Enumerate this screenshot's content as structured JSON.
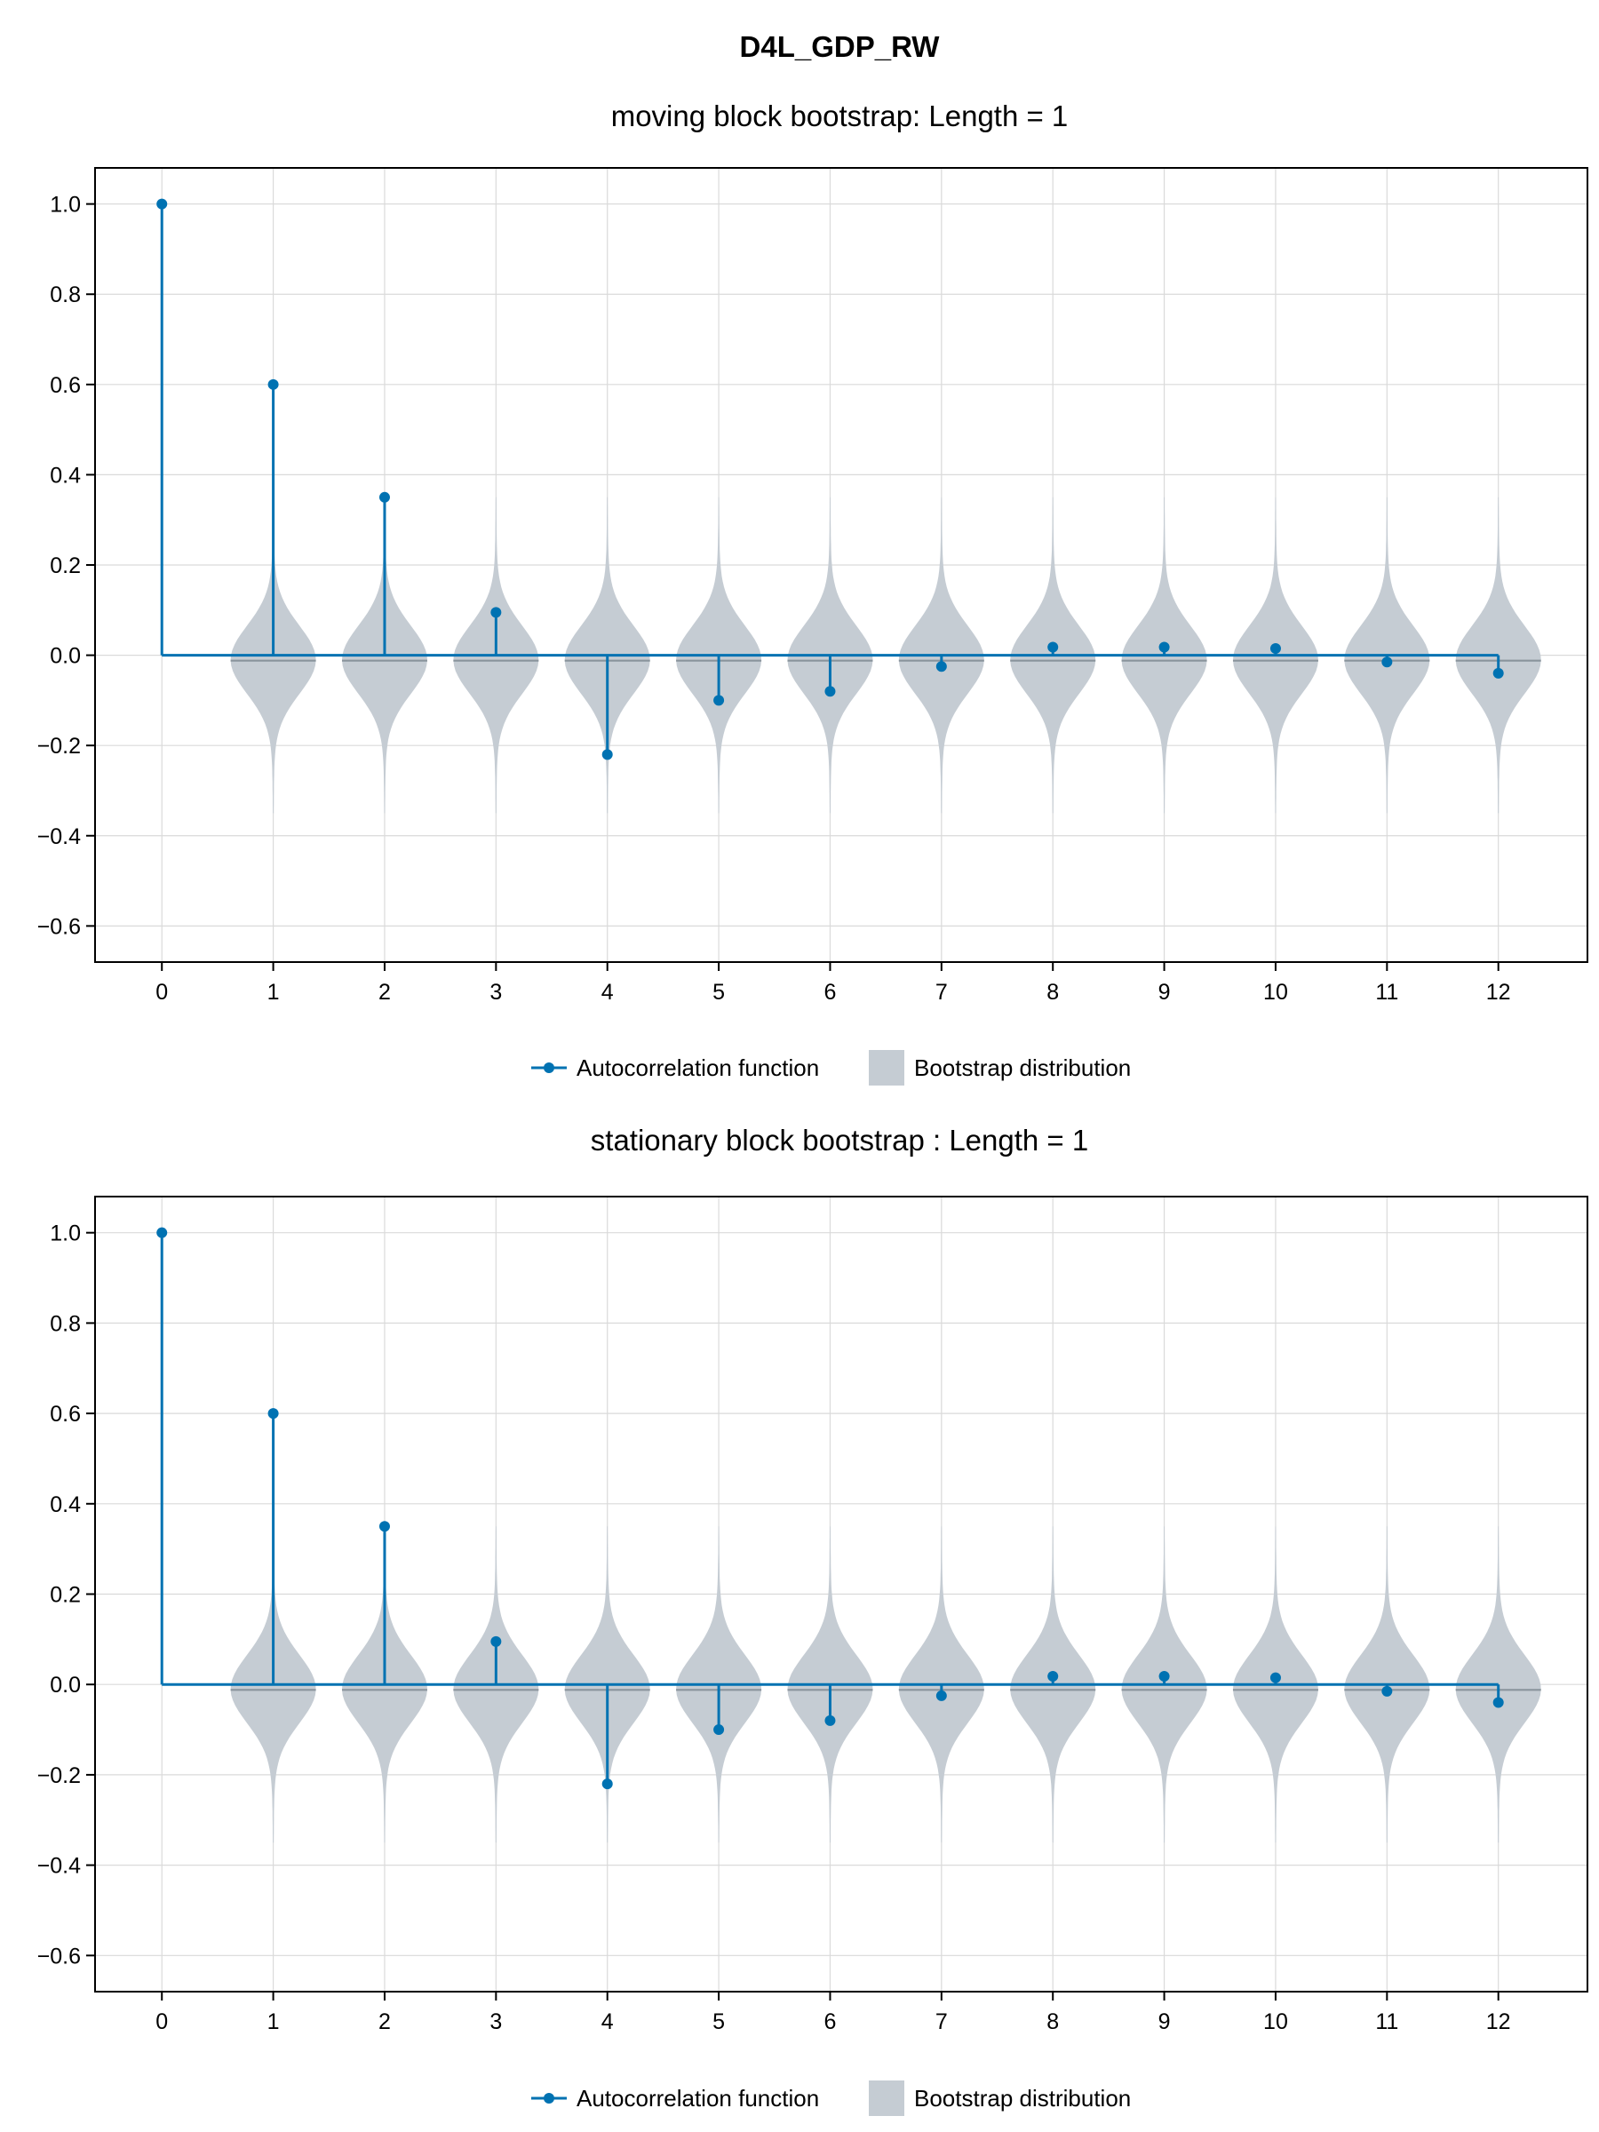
{
  "title": "D4L_GDP_RW",
  "colors": {
    "acf": "#0072B2",
    "bootstrap": "#C5CCD3",
    "bootstrap_median": "#8A949C",
    "grid": "#DADADA"
  },
  "legend": {
    "acf_label": "Autocorrelation function",
    "bootstrap_label": "Bootstrap distribution"
  },
  "chart_data": [
    {
      "type": "stem+violin",
      "title": "moving block bootstrap: Length = 1",
      "xlabel": "",
      "ylabel": "",
      "x_ticks": [
        "0",
        "1",
        "2",
        "3",
        "4",
        "5",
        "6",
        "7",
        "8",
        "9",
        "10",
        "11",
        "12"
      ],
      "y_ticks": [
        "−0.6",
        "−0.4",
        "−0.2",
        "0.0",
        "0.2",
        "0.4",
        "0.6",
        "0.8",
        "1.0"
      ],
      "ylim": [
        -0.6,
        1.0
      ],
      "xlim": [
        -0.6,
        12.8
      ],
      "grid": true,
      "legend_position": "bottom",
      "series": [
        {
          "name": "Autocorrelation function",
          "x": [
            0,
            1,
            2,
            3,
            4,
            5,
            6,
            7,
            8,
            9,
            10,
            11,
            12
          ],
          "values": [
            1.0,
            0.6,
            0.35,
            0.095,
            -0.22,
            -0.1,
            -0.08,
            -0.025,
            0.018,
            0.018,
            0.015,
            -0.015,
            -0.04
          ]
        },
        {
          "name": "Bootstrap distribution",
          "x": [
            1,
            2,
            3,
            4,
            5,
            6,
            7,
            8,
            9,
            10,
            11,
            12
          ],
          "range": [
            -0.35,
            0.35
          ],
          "median": -0.012
        }
      ]
    },
    {
      "type": "stem+violin",
      "title": "stationary block bootstrap : Length = 1",
      "xlabel": "",
      "ylabel": "",
      "x_ticks": [
        "0",
        "1",
        "2",
        "3",
        "4",
        "5",
        "6",
        "7",
        "8",
        "9",
        "10",
        "11",
        "12"
      ],
      "y_ticks": [
        "−0.6",
        "−0.4",
        "−0.2",
        "0.0",
        "0.2",
        "0.4",
        "0.6",
        "0.8",
        "1.0"
      ],
      "ylim": [
        -0.6,
        1.0
      ],
      "xlim": [
        -0.6,
        12.8
      ],
      "grid": true,
      "legend_position": "bottom",
      "series": [
        {
          "name": "Autocorrelation function",
          "x": [
            0,
            1,
            2,
            3,
            4,
            5,
            6,
            7,
            8,
            9,
            10,
            11,
            12
          ],
          "values": [
            1.0,
            0.6,
            0.35,
            0.095,
            -0.22,
            -0.1,
            -0.08,
            -0.025,
            0.018,
            0.018,
            0.015,
            -0.015,
            -0.04
          ]
        },
        {
          "name": "Bootstrap distribution",
          "x": [
            1,
            2,
            3,
            4,
            5,
            6,
            7,
            8,
            9,
            10,
            11,
            12
          ],
          "range": [
            -0.35,
            0.35
          ],
          "median": -0.012
        }
      ]
    }
  ]
}
